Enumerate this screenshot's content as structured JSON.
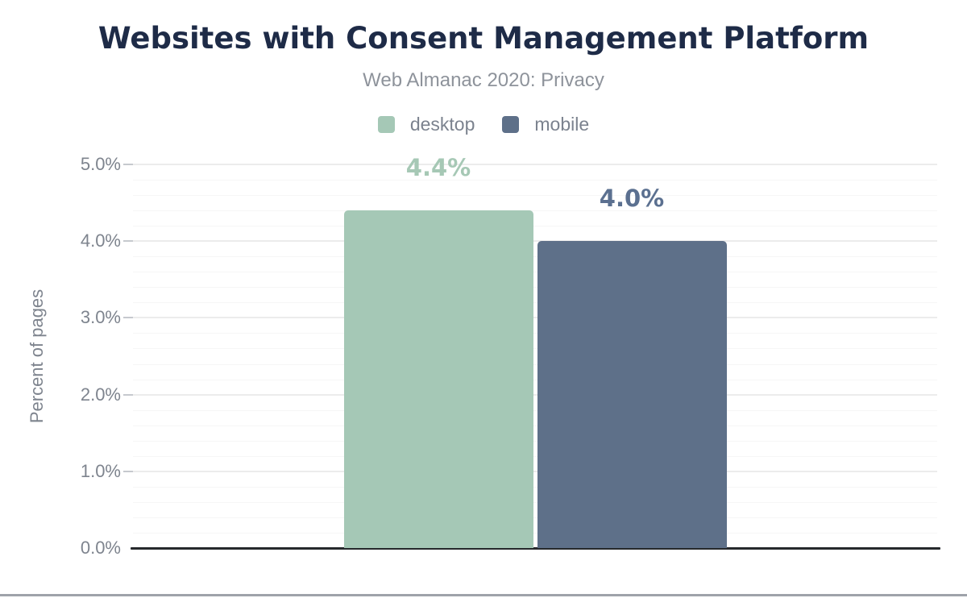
{
  "colors": {
    "background": "#ffffff",
    "title": "#1e2b47",
    "subtitle": "#8e939b",
    "legend_text": "#7b828e",
    "axis_text": "#7e848e",
    "grid_minor": "#f6f6f6",
    "grid_major": "#ececec",
    "tick": "#c6c9ce",
    "baseline": "#26292c",
    "bottom_divider": "#9fa3aa"
  },
  "header": {
    "title": "Websites with Consent Management Platform",
    "subtitle": "Web Almanac 2020: Privacy"
  },
  "legend": {
    "items": [
      {
        "label": "desktop",
        "color": "#a5c8b6"
      },
      {
        "label": "mobile",
        "color": "#5e7089"
      }
    ]
  },
  "chart_data": {
    "type": "bar",
    "title": "Websites with Consent Management Platform",
    "subtitle": "Web Almanac 2020: Privacy",
    "xlabel": "",
    "ylabel": "Percent of pages",
    "ylim": [
      0,
      5
    ],
    "y_major_step": 1,
    "y_minor_step": 0.2,
    "grid": true,
    "legend_position": "top",
    "y_ticks": [
      {
        "value": 0,
        "label": "0.0%"
      },
      {
        "value": 1,
        "label": "1.0%"
      },
      {
        "value": 2,
        "label": "2.0%"
      },
      {
        "value": 3,
        "label": "3.0%"
      },
      {
        "value": 4,
        "label": "4.0%"
      },
      {
        "value": 5,
        "label": "5.0%"
      }
    ],
    "series": [
      {
        "name": "desktop",
        "value": 4.4,
        "data_label": "4.4%",
        "color": "#a5c8b6",
        "label_color": "#a6c8b5"
      },
      {
        "name": "mobile",
        "value": 4.0,
        "data_label": "4.0%",
        "color": "#5e7089",
        "label_color": "#5b7090"
      }
    ]
  }
}
